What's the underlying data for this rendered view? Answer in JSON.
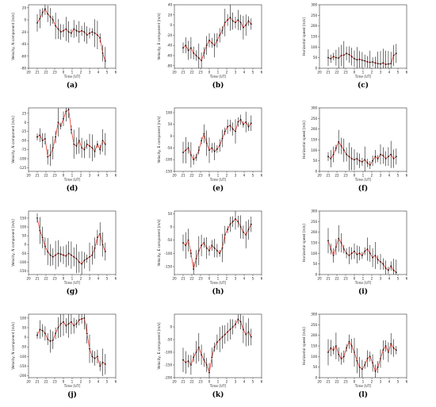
{
  "figure": {
    "panel_labels": [
      "(a)",
      "(b)",
      "(c)",
      "(d)",
      "(e)",
      "(f)",
      "(g)",
      "(h)",
      "(i)",
      "(j)",
      "(k)",
      "(l)"
    ],
    "x_axis_label": "Time [UT]",
    "series_color": "#e03a2f",
    "errorbar_color": "#000000"
  },
  "chart_data": [
    {
      "label": "(a)",
      "type": "line",
      "xlabel": "Time [UT]",
      "ylabel": "Velocity, N component [m/s]",
      "xlim": [
        20,
        6
      ],
      "xticks": [
        "20",
        "21",
        "22",
        "23",
        "0",
        "1",
        "2",
        "3",
        "4",
        "5",
        "6"
      ],
      "ylim": [
        -80,
        25
      ],
      "yticks": [
        -80,
        -60,
        -40,
        -20,
        0,
        20
      ],
      "x": [
        21,
        21.3,
        21.6,
        21.9,
        22.2,
        22.5,
        22.8,
        23.1,
        23.4,
        23.7,
        0,
        0.3,
        0.6,
        0.9,
        1.2,
        1.5,
        1.8,
        2.1,
        2.4,
        2.7,
        3.0,
        3.3,
        3.6,
        3.9,
        4.2,
        4.5,
        4.8
      ],
      "values": [
        -5,
        2,
        12,
        18,
        10,
        5,
        0,
        -10,
        -15,
        -20,
        -18,
        -15,
        -20,
        -22,
        -15,
        -18,
        -20,
        -18,
        -20,
        -25,
        -22,
        -20,
        -22,
        -25,
        -30,
        -55,
        -68
      ]
    },
    {
      "label": "(b)",
      "type": "line",
      "xlabel": "Time [UT]",
      "ylabel": "Velocity, E component [m/s]",
      "xlim": [
        20,
        6
      ],
      "xticks": [
        "20",
        "21",
        "22",
        "23",
        "0",
        "1",
        "2",
        "3",
        "4",
        "5",
        "6"
      ],
      "ylim": [
        -85,
        40
      ],
      "yticks": [
        -80,
        -60,
        -40,
        -20,
        0,
        20,
        40
      ],
      "x": [
        21,
        21.3,
        21.6,
        21.9,
        22.2,
        22.5,
        22.8,
        23.1,
        23.4,
        23.7,
        0,
        0.3,
        0.6,
        0.9,
        1.2,
        1.5,
        1.8,
        2.1,
        2.4,
        2.7,
        3.0,
        3.3,
        3.6,
        3.9,
        4.2,
        4.5,
        4.8
      ],
      "values": [
        -45,
        -40,
        -50,
        -45,
        -55,
        -60,
        -65,
        -70,
        -55,
        -40,
        -30,
        -35,
        -40,
        -30,
        -20,
        -10,
        5,
        10,
        15,
        8,
        5,
        10,
        5,
        -5,
        0,
        8,
        2
      ]
    },
    {
      "label": "(c)",
      "type": "line",
      "xlabel": "Time [UT]",
      "ylabel": "Horizontal speed [m/s]",
      "xlim": [
        20,
        6
      ],
      "xticks": [
        "20",
        "21",
        "22",
        "23",
        "0",
        "1",
        "2",
        "3",
        "4",
        "5",
        "6"
      ],
      "ylim": [
        0,
        300
      ],
      "yticks": [
        0,
        50,
        100,
        150,
        200,
        250,
        300
      ],
      "x": [
        21,
        21.3,
        21.6,
        21.9,
        22.2,
        22.5,
        22.8,
        23.1,
        23.4,
        23.7,
        0,
        0.3,
        0.6,
        0.9,
        1.2,
        1.5,
        1.8,
        2.1,
        2.4,
        2.7,
        3.0,
        3.3,
        3.6,
        3.9,
        4.2,
        4.5,
        4.8
      ],
      "values": [
        50,
        45,
        55,
        50,
        48,
        60,
        62,
        70,
        65,
        55,
        45,
        40,
        42,
        38,
        35,
        30,
        28,
        30,
        25,
        22,
        20,
        25,
        18,
        20,
        22,
        60,
        70
      ]
    },
    {
      "label": "(d)",
      "type": "line",
      "xlabel": "Time [UT]",
      "ylabel": "Velocity, N component [m/s]",
      "xlim": [
        20,
        6
      ],
      "xticks": [
        "20",
        "21",
        "22",
        "23",
        "0",
        "1",
        "2",
        "3",
        "4",
        "5",
        "6"
      ],
      "ylim": [
        -135,
        40
      ],
      "yticks": [
        -125,
        -100,
        -75,
        -50,
        -25,
        0,
        25
      ],
      "x": [
        21,
        21.3,
        21.6,
        21.9,
        22.2,
        22.5,
        22.8,
        23.1,
        23.4,
        23.7,
        0,
        0.3,
        0.6,
        0.9,
        1.2,
        1.5,
        1.8,
        2.1,
        2.4,
        2.7,
        3.0,
        3.3,
        3.6,
        3.9,
        4.2,
        4.5,
        4.8
      ],
      "values": [
        -40,
        -35,
        -50,
        -45,
        -95,
        -90,
        -70,
        -40,
        0,
        -10,
        10,
        30,
        35,
        -20,
        -60,
        -65,
        -50,
        -70,
        -75,
        -60,
        -65,
        -70,
        -80,
        -60,
        -75,
        -50,
        -60
      ]
    },
    {
      "label": "(e)",
      "type": "line",
      "xlabel": "Time [UT]",
      "ylabel": "Velocity, E component [m/s]",
      "xlim": [
        20,
        6
      ],
      "xticks": [
        "20",
        "21",
        "22",
        "23",
        "0",
        "1",
        "2",
        "3",
        "4",
        "5",
        "6"
      ],
      "ylim": [
        -150,
        120
      ],
      "yticks": [
        -150,
        -100,
        -50,
        0,
        50,
        100
      ],
      "x": [
        21,
        21.3,
        21.6,
        21.9,
        22.2,
        22.5,
        22.8,
        23.1,
        23.4,
        23.7,
        0,
        0.3,
        0.6,
        0.9,
        1.2,
        1.5,
        1.8,
        2.1,
        2.4,
        2.7,
        3.0,
        3.3,
        3.6,
        3.9,
        4.2,
        4.5,
        4.8
      ],
      "values": [
        -70,
        -60,
        -50,
        -80,
        -100,
        -90,
        -60,
        -20,
        10,
        -30,
        -60,
        -50,
        -65,
        -55,
        -40,
        -10,
        20,
        40,
        45,
        30,
        20,
        60,
        70,
        50,
        60,
        40,
        55
      ]
    },
    {
      "label": "(f)",
      "type": "line",
      "xlabel": "Time [UT]",
      "ylabel": "Horizontal speed [m/s]",
      "xlim": [
        20,
        6
      ],
      "xticks": [
        "20",
        "21",
        "22",
        "23",
        "0",
        "1",
        "2",
        "3",
        "4",
        "5",
        "6"
      ],
      "ylim": [
        0,
        300
      ],
      "yticks": [
        0,
        50,
        100,
        150,
        200,
        250,
        300
      ],
      "x": [
        21,
        21.3,
        21.6,
        21.9,
        22.2,
        22.5,
        22.8,
        23.1,
        23.4,
        23.7,
        0,
        0.3,
        0.6,
        0.9,
        1.2,
        1.5,
        1.8,
        2.1,
        2.4,
        2.7,
        3.0,
        3.3,
        3.6,
        3.9,
        4.2,
        4.5,
        4.8
      ],
      "values": [
        70,
        60,
        80,
        110,
        140,
        120,
        100,
        80,
        70,
        60,
        55,
        60,
        50,
        45,
        55,
        40,
        30,
        50,
        70,
        60,
        80,
        75,
        60,
        70,
        80,
        60,
        70
      ]
    },
    {
      "label": "(g)",
      "type": "line",
      "xlabel": "Time [UT]",
      "ylabel": "Velocity, N component [m/s]",
      "xlim": [
        20,
        6
      ],
      "xticks": [
        "20",
        "21",
        "22",
        "23",
        "0",
        "1",
        "2",
        "3",
        "4",
        "5",
        "6"
      ],
      "ylim": [
        -170,
        190
      ],
      "yticks": [
        -150,
        -100,
        -50,
        0,
        50,
        100,
        150
      ],
      "x": [
        21,
        21.3,
        21.6,
        21.9,
        22.2,
        22.5,
        22.8,
        23.1,
        23.4,
        23.7,
        0,
        0.3,
        0.6,
        0.9,
        1.2,
        1.5,
        1.8,
        2.1,
        2.4,
        2.7,
        3.0,
        3.3,
        3.6,
        3.9,
        4.2,
        4.5,
        4.8
      ],
      "values": [
        150,
        80,
        40,
        -10,
        -40,
        -60,
        -70,
        -60,
        -50,
        -55,
        -60,
        -65,
        -50,
        -60,
        -70,
        -80,
        -100,
        -110,
        -90,
        -80,
        -70,
        -60,
        -20,
        40,
        60,
        0,
        -40
      ]
    },
    {
      "label": "(h)",
      "type": "line",
      "xlabel": "Time [UT]",
      "ylabel": "Velocity, E component [m/s]",
      "xlim": [
        20,
        6
      ],
      "xticks": [
        "20",
        "21",
        "22",
        "23",
        "0",
        "1",
        "2",
        "3",
        "4",
        "5",
        "6"
      ],
      "ylim": [
        -180,
        60
      ],
      "yticks": [
        -150,
        -100,
        -50,
        0,
        50
      ],
      "x": [
        21,
        21.3,
        21.6,
        21.9,
        22.2,
        22.5,
        22.8,
        23.1,
        23.4,
        23.7,
        0,
        0.3,
        0.6,
        0.9,
        1.2,
        1.5,
        1.8,
        2.1,
        2.4,
        2.7,
        3.0,
        3.3,
        3.6,
        3.9,
        4.2,
        4.5,
        4.8
      ],
      "values": [
        -60,
        -70,
        -50,
        -100,
        -160,
        -120,
        -90,
        -70,
        -60,
        -80,
        -90,
        -70,
        -80,
        -90,
        -100,
        -80,
        -30,
        -10,
        10,
        20,
        30,
        20,
        0,
        -20,
        -30,
        -10,
        10
      ]
    },
    {
      "label": "(i)",
      "type": "line",
      "xlabel": "Time [UT]",
      "ylabel": "Horizontal speed [m/s]",
      "xlim": [
        20,
        6
      ],
      "xticks": [
        "20",
        "21",
        "22",
        "23",
        "0",
        "1",
        "2",
        "3",
        "4",
        "5",
        "6"
      ],
      "ylim": [
        0,
        300
      ],
      "yticks": [
        0,
        50,
        100,
        150,
        200,
        250,
        300
      ],
      "x": [
        21,
        21.3,
        21.6,
        21.9,
        22.2,
        22.5,
        22.8,
        23.1,
        23.4,
        23.7,
        0,
        0.3,
        0.6,
        0.9,
        1.2,
        1.5,
        1.8,
        2.1,
        2.4,
        2.7,
        3.0,
        3.3,
        3.6,
        3.9,
        4.2,
        4.5,
        4.8
      ],
      "values": [
        160,
        120,
        90,
        130,
        170,
        150,
        120,
        100,
        90,
        100,
        110,
        95,
        100,
        90,
        110,
        120,
        100,
        80,
        90,
        70,
        60,
        50,
        30,
        20,
        40,
        20,
        10
      ]
    },
    {
      "label": "(j)",
      "type": "line",
      "xlabel": "Time [UT]",
      "ylabel": "Velocity, N component [m/s]",
      "xlim": [
        20,
        6
      ],
      "xticks": [
        "20",
        "21",
        "22",
        "23",
        "0",
        "1",
        "2",
        "3",
        "4",
        "5",
        "6"
      ],
      "ylim": [
        -210,
        120
      ],
      "yticks": [
        -200,
        -150,
        -100,
        -50,
        0,
        50,
        100
      ],
      "x": [
        21,
        21.3,
        21.6,
        21.9,
        22.2,
        22.5,
        22.8,
        23.1,
        23.4,
        23.7,
        0,
        0.3,
        0.6,
        0.9,
        1.2,
        1.5,
        1.8,
        2.1,
        2.4,
        2.7,
        3.0,
        3.3,
        3.6,
        3.9,
        4.2,
        4.5,
        4.8
      ],
      "values": [
        10,
        40,
        35,
        20,
        -10,
        -20,
        -15,
        20,
        50,
        70,
        80,
        60,
        70,
        80,
        60,
        70,
        90,
        95,
        100,
        20,
        -60,
        -100,
        -110,
        -100,
        -150,
        -130,
        -140
      ]
    },
    {
      "label": "(k)",
      "type": "line",
      "xlabel": "Time [UT]",
      "ylabel": "Velocity, E component [m/s]",
      "xlim": [
        20,
        6
      ],
      "xticks": [
        "20",
        "21",
        "22",
        "23",
        "0",
        "1",
        "2",
        "3",
        "4",
        "5",
        "6"
      ],
      "ylim": [
        -200,
        50
      ],
      "yticks": [
        -200,
        -150,
        -100,
        -50,
        0
      ],
      "x": [
        21,
        21.3,
        21.6,
        21.9,
        22.2,
        22.5,
        22.8,
        23.1,
        23.4,
        23.7,
        0,
        0.3,
        0.6,
        0.9,
        1.2,
        1.5,
        1.8,
        2.1,
        2.4,
        2.7,
        3.0,
        3.3,
        3.6,
        3.9,
        4.2,
        4.5,
        4.8
      ],
      "values": [
        -130,
        -140,
        -135,
        -150,
        -120,
        -100,
        -80,
        -110,
        -130,
        -150,
        -180,
        -120,
        -80,
        -60,
        -50,
        -40,
        -30,
        -20,
        -10,
        0,
        10,
        30,
        20,
        -10,
        -30,
        -20,
        -40
      ]
    },
    {
      "label": "(l)",
      "type": "line",
      "xlabel": "Time [UT]",
      "ylabel": "Horizontal speed [m/s]",
      "xlim": [
        20,
        6
      ],
      "xticks": [
        "20",
        "21",
        "22",
        "23",
        "0",
        "1",
        "2",
        "3",
        "4",
        "5",
        "6"
      ],
      "ylim": [
        0,
        300
      ],
      "yticks": [
        0,
        50,
        100,
        150,
        200,
        250,
        300
      ],
      "x": [
        21,
        21.3,
        21.6,
        21.9,
        22.2,
        22.5,
        22.8,
        23.1,
        23.4,
        23.7,
        0,
        0.3,
        0.6,
        0.9,
        1.2,
        1.5,
        1.8,
        2.1,
        2.4,
        2.7,
        3.0,
        3.3,
        3.6,
        3.9,
        4.2,
        4.5,
        4.8
      ],
      "values": [
        120,
        140,
        130,
        150,
        110,
        90,
        100,
        140,
        170,
        150,
        120,
        80,
        50,
        40,
        60,
        90,
        100,
        70,
        30,
        50,
        90,
        130,
        150,
        120,
        160,
        140,
        130
      ]
    }
  ]
}
